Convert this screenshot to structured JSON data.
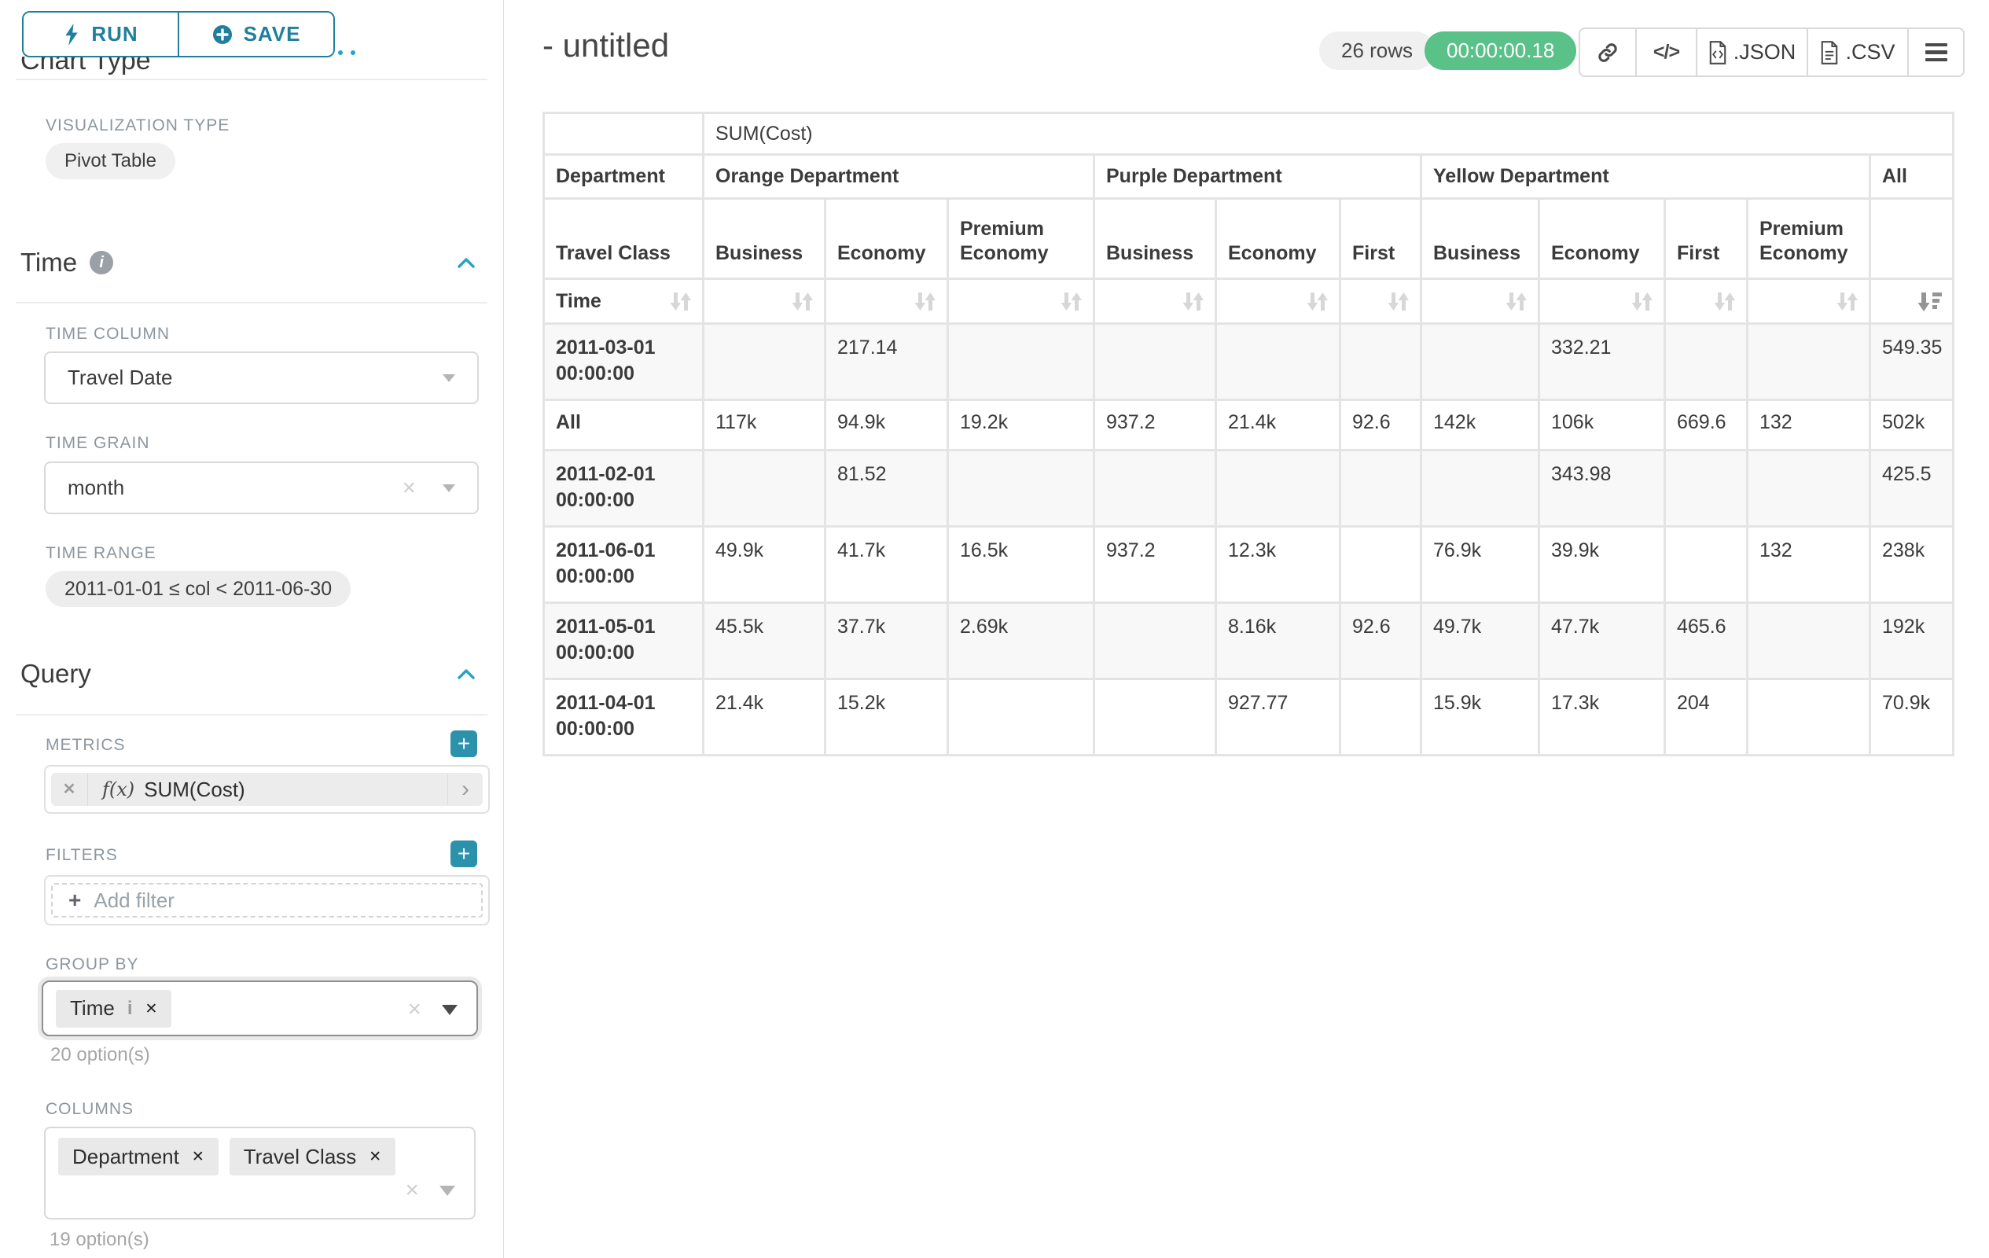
{
  "colors": {
    "accent_dark": "#1f7f9c",
    "accent_bright": "#20a7c9",
    "success_green": "#5ac189",
    "pill_gray": "#f0f0f0",
    "table_border": "#e4e4e4"
  },
  "sidebar": {
    "run": "RUN",
    "save": "SAVE",
    "chart_type_heading": "Chart Type",
    "visualization": {
      "label": "VISUALIZATION TYPE",
      "value": "Pivot Table"
    },
    "time": {
      "title": "Time",
      "column_label": "TIME COLUMN",
      "column_value": "Travel Date",
      "grain_label": "TIME GRAIN",
      "grain_value": "month",
      "range_label": "TIME RANGE",
      "range_value": "2011-01-01 ≤ col < 2011-06-30"
    },
    "query": {
      "title": "Query",
      "metrics_label": "METRICS",
      "metric": {
        "fx": "f(x)",
        "name": "SUM(Cost)"
      },
      "filters_label": "FILTERS",
      "add_filter": "Add filter",
      "group_by": {
        "label": "GROUP BY",
        "chips": [
          "Time"
        ],
        "hint": "20 option(s)"
      },
      "columns": {
        "label": "COLUMNS",
        "chips": [
          "Department",
          "Travel Class"
        ],
        "hint": "19 option(s)"
      }
    }
  },
  "header": {
    "title": "- untitled",
    "rows_badge": "26 rows",
    "duration_badge": "00:00:00.18",
    "json_label": ".JSON",
    "csv_label": ".CSV",
    "code_glyph": "</>"
  },
  "chart_data": {
    "type": "table",
    "title": "SUM(Cost)",
    "col_dimension_labels": [
      "Department",
      "Travel Class"
    ],
    "row_dimension_label": "Time",
    "column_groups": [
      {
        "label": "Orange Department",
        "columns": [
          "Business",
          "Economy",
          "Premium Economy"
        ]
      },
      {
        "label": "Purple Department",
        "columns": [
          "Business",
          "Economy",
          "First"
        ]
      },
      {
        "label": "Yellow Department",
        "columns": [
          "Business",
          "Economy",
          "First",
          "Premium Economy"
        ]
      },
      {
        "label": "All",
        "columns": [
          ""
        ]
      }
    ],
    "rows": [
      {
        "label": "2011-03-01 00:00:00",
        "values": [
          "",
          "217.14",
          "",
          "",
          "",
          "",
          "",
          "332.21",
          "",
          "",
          "549.35"
        ]
      },
      {
        "label": "All",
        "values": [
          "117k",
          "94.9k",
          "19.2k",
          "937.2",
          "21.4k",
          "92.6",
          "142k",
          "106k",
          "669.6",
          "132",
          "502k"
        ]
      },
      {
        "label": "2011-02-01 00:00:00",
        "values": [
          "",
          "81.52",
          "",
          "",
          "",
          "",
          "",
          "343.98",
          "",
          "",
          "425.5"
        ]
      },
      {
        "label": "2011-06-01 00:00:00",
        "values": [
          "49.9k",
          "41.7k",
          "16.5k",
          "937.2",
          "12.3k",
          "",
          "76.9k",
          "39.9k",
          "",
          "132",
          "238k"
        ]
      },
      {
        "label": "2011-05-01 00:00:00",
        "values": [
          "45.5k",
          "37.7k",
          "2.69k",
          "",
          "8.16k",
          "92.6",
          "49.7k",
          "47.7k",
          "465.6",
          "",
          "192k"
        ]
      },
      {
        "label": "2011-04-01 00:00:00",
        "values": [
          "21.4k",
          "15.2k",
          "",
          "",
          "927.77",
          "",
          "15.9k",
          "17.3k",
          "204",
          "",
          "70.9k"
        ]
      }
    ],
    "sorted_column_index": 10,
    "sort_direction": "desc"
  }
}
